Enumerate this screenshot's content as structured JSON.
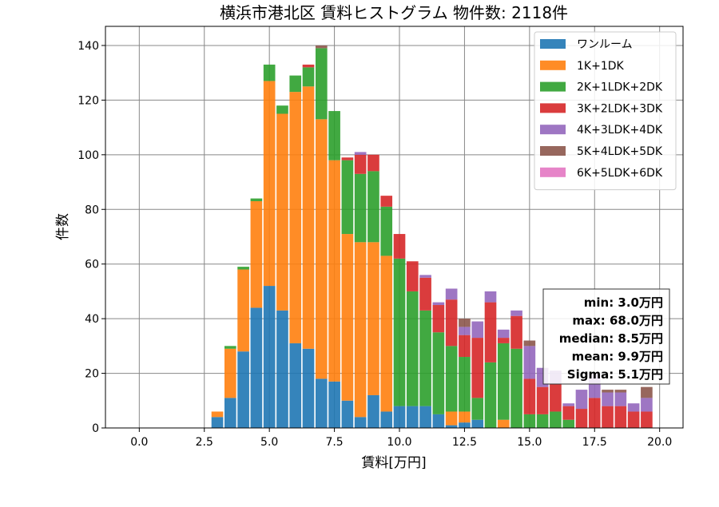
{
  "chart_data": {
    "type": "bar",
    "stacked": true,
    "title": "横浜市港北区 賃料ヒストグラム 物件数: 2118件",
    "xlabel": "賃料[万円]",
    "ylabel": "件数",
    "xlim": [
      -1.3,
      20.9
    ],
    "ylim": [
      0,
      147
    ],
    "xticks": [
      "0.0",
      "2.5",
      "5.0",
      "7.5",
      "10.0",
      "12.5",
      "15.0",
      "17.5",
      "20.0"
    ],
    "xtick_values": [
      0,
      2.5,
      5,
      7.5,
      10,
      12.5,
      15,
      17.5,
      20
    ],
    "yticks": [
      "0",
      "20",
      "40",
      "60",
      "80",
      "100",
      "120",
      "140"
    ],
    "ytick_values": [
      0,
      20,
      40,
      60,
      80,
      100,
      120,
      140
    ],
    "grid": true,
    "legend_position": "top-right",
    "bin_width": 0.5,
    "bins": [
      3.0,
      3.5,
      4.0,
      4.5,
      5.0,
      5.5,
      6.0,
      6.5,
      7.0,
      7.5,
      8.0,
      8.5,
      9.0,
      9.5,
      10.0,
      10.5,
      11.0,
      11.5,
      12.0,
      12.5,
      13.0,
      13.5,
      14.0,
      14.5,
      15.0,
      15.5,
      16.0,
      16.5,
      17.0,
      17.5,
      18.0,
      18.5,
      19.0,
      19.5
    ],
    "series": [
      {
        "name": "ワンルーム",
        "color": "#1f77b4",
        "values": [
          4,
          11,
          28,
          44,
          52,
          43,
          31,
          29,
          18,
          17,
          10,
          4,
          12,
          6,
          8,
          8,
          8,
          5,
          1,
          2,
          3,
          0,
          0,
          0,
          0,
          0,
          0,
          0,
          0,
          0,
          0,
          0,
          0,
          0
        ]
      },
      {
        "name": "1K+1DK",
        "color": "#ff7f0e",
        "values": [
          2,
          18,
          30,
          39,
          75,
          72,
          92,
          96,
          95,
          81,
          61,
          64,
          56,
          57,
          0,
          0,
          0,
          0,
          5,
          4,
          0,
          0,
          3,
          0,
          0,
          0,
          0,
          0,
          0,
          0,
          0,
          0,
          0,
          0
        ]
      },
      {
        "name": "2K+1LDK+2DK",
        "color": "#2ca02c",
        "values": [
          0,
          1,
          1,
          1,
          6,
          3,
          6,
          7,
          26,
          18,
          27,
          25,
          26,
          18,
          54,
          42,
          35,
          30,
          24,
          20,
          8,
          24,
          28,
          29,
          5,
          5,
          6,
          3,
          0,
          0,
          0,
          0,
          0,
          0
        ]
      },
      {
        "name": "3K+2LDK+3DK",
        "color": "#d62728",
        "values": [
          0,
          0,
          0,
          0,
          0,
          0,
          0,
          1,
          0,
          0,
          1,
          7,
          6,
          4,
          9,
          11,
          12,
          10,
          17,
          8,
          22,
          22,
          2,
          12,
          13,
          10,
          10,
          5,
          7,
          11,
          8,
          8,
          6,
          6
        ]
      },
      {
        "name": "4K+3LDK+4DK",
        "color": "#9467bd",
        "values": [
          0,
          0,
          0,
          0,
          0,
          0,
          0,
          0,
          0,
          0,
          0,
          1,
          0,
          0,
          0,
          0,
          1,
          1,
          4,
          3,
          6,
          4,
          3,
          2,
          12,
          7,
          5,
          1,
          7,
          9,
          5,
          5,
          3,
          5
        ]
      },
      {
        "name": "5K+4LDK+5DK",
        "color": "#8c564b",
        "values": [
          0,
          0,
          0,
          0,
          0,
          0,
          0,
          0,
          1,
          0,
          0,
          0,
          0,
          0,
          0,
          0,
          0,
          0,
          0,
          3,
          0,
          0,
          0,
          0,
          2,
          0,
          0,
          0,
          0,
          0,
          1,
          1,
          0,
          4
        ]
      },
      {
        "name": "6K+5LDK+6DK",
        "color": "#e377c2",
        "values": [
          0,
          0,
          0,
          0,
          0,
          0,
          0,
          0,
          0,
          0,
          0,
          0,
          0,
          0,
          0,
          0,
          0,
          0,
          0,
          0,
          0,
          0,
          0,
          0,
          0,
          0,
          0,
          0,
          0,
          0,
          0,
          0,
          0,
          0
        ]
      }
    ],
    "stats": [
      "min: 3.0万円",
      "max: 68.0万円",
      "median: 8.5万円",
      "mean: 9.9万円",
      "Sigma: 5.1万円"
    ]
  }
}
